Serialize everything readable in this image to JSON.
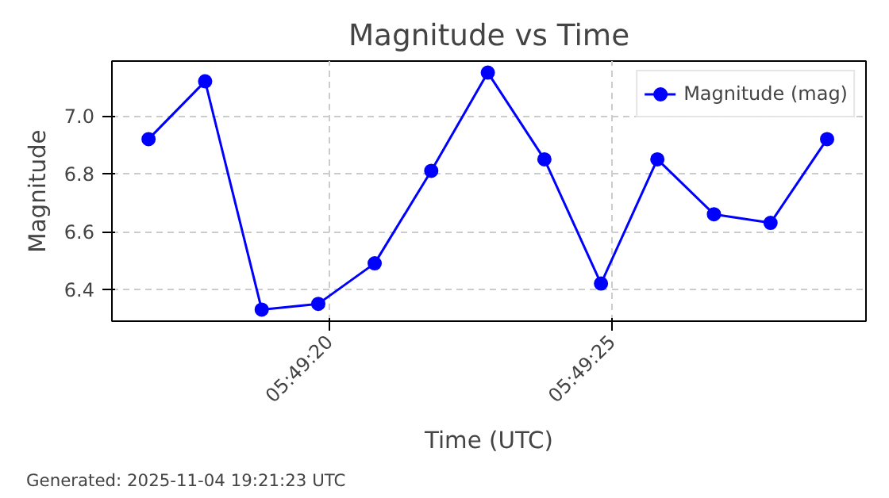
{
  "chart_data": {
    "type": "line",
    "title": "Magnitude vs Time",
    "xlabel": "Time (UTC)",
    "ylabel": "Magnitude",
    "x": [
      5.821333,
      5.821611,
      5.821889,
      5.822167,
      5.822444,
      5.822722,
      5.823,
      5.823278,
      5.823556,
      5.823833,
      5.824111,
      5.824389,
      5.824667
    ],
    "series": [
      {
        "name": "Magnitude (mag)",
        "color": "#0000ff",
        "values": [
          6.92,
          7.12,
          6.33,
          6.35,
          6.49,
          6.81,
          7.15,
          6.85,
          6.42,
          6.85,
          6.66,
          6.63,
          6.92
        ]
      }
    ],
    "xlim": [
      5.821153,
      5.824858
    ],
    "xticks": [
      {
        "value": 5.822222,
        "label": "05:49:20"
      },
      {
        "value": 5.823611,
        "label": "05:49:25"
      }
    ],
    "ylim": [
      6.29,
      7.19
    ],
    "yticks": [
      {
        "value": 6.4,
        "label": "6.4"
      },
      {
        "value": 6.6,
        "label": "6.6"
      },
      {
        "value": 6.8,
        "label": "6.8"
      },
      {
        "value": 7.0,
        "label": "7.0"
      }
    ],
    "grid": true,
    "legend": "top right",
    "marker": "circle",
    "line_style": "solid",
    "annotations": [
      "Generated: 2025-11-04 19:21:23 UTC"
    ]
  }
}
